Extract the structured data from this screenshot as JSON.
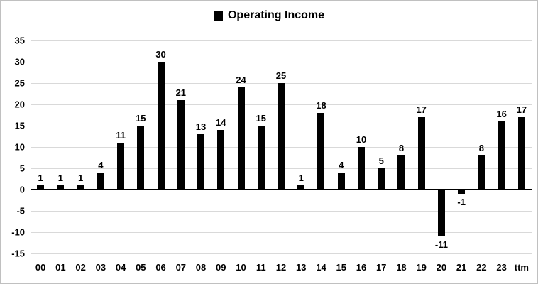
{
  "chart_data": {
    "type": "bar",
    "title": "Operating Income",
    "categories": [
      "00",
      "01",
      "02",
      "03",
      "04",
      "05",
      "06",
      "07",
      "08",
      "09",
      "10",
      "11",
      "12",
      "13",
      "14",
      "15",
      "16",
      "17",
      "18",
      "19",
      "20",
      "21",
      "22",
      "23",
      "ttm"
    ],
    "values": [
      1,
      1,
      1,
      4,
      11,
      15,
      30,
      21,
      13,
      14,
      24,
      15,
      25,
      1,
      18,
      4,
      10,
      5,
      8,
      17,
      -11,
      -1,
      8,
      16,
      17
    ],
    "ylim": [
      -15,
      35
    ],
    "yticks": [
      35,
      30,
      25,
      20,
      15,
      10,
      5,
      0,
      -5,
      -10,
      -15
    ],
    "grid": true,
    "data_labels": true,
    "legend_position": "top",
    "bar_color": "#000000",
    "grid_color": "#d9d9d9",
    "zero_axis_color": "#000000",
    "label_color": "#000000"
  }
}
